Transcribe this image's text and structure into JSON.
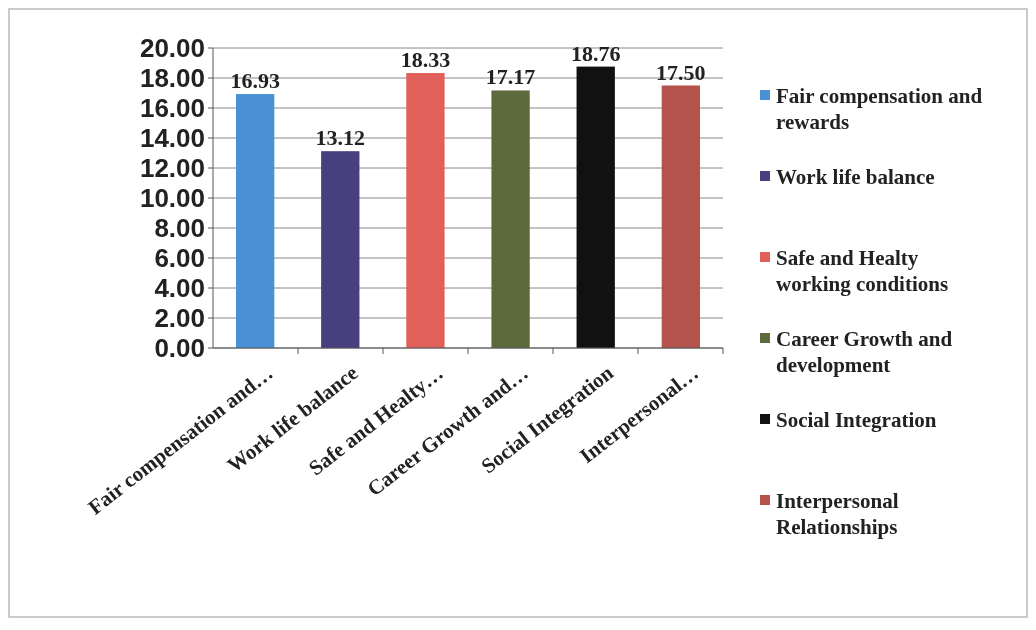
{
  "chart_data": {
    "type": "bar",
    "categories": [
      "Fair compensation and…",
      "Work life balance",
      "Safe and Healty…",
      "Career Growth and…",
      "Social Integration",
      "Interpersonal…"
    ],
    "series": [
      {
        "name": "Fair compensation and rewards",
        "color": "#4a90d4",
        "values": [
          16.93,
          null,
          null,
          null,
          null,
          null
        ],
        "value_labels": [
          "16.93",
          null,
          null,
          null,
          null,
          null
        ]
      },
      {
        "name": "Work life balance",
        "color": "#48407e",
        "values": [
          null,
          13.12,
          null,
          null,
          null,
          null
        ],
        "value_labels": [
          null,
          "13.12",
          null,
          null,
          null,
          null
        ]
      },
      {
        "name": "Safe and Healty working conditions",
        "color": "#e2605a",
        "values": [
          null,
          null,
          18.33,
          null,
          null,
          null
        ],
        "value_labels": [
          null,
          null,
          "18.33",
          null,
          null,
          null
        ]
      },
      {
        "name": "Career Growth and development",
        "color": "#5c6a3c",
        "values": [
          null,
          null,
          null,
          17.17,
          null,
          null
        ],
        "value_labels": [
          null,
          null,
          null,
          "17.17",
          null,
          null
        ]
      },
      {
        "name": "Social Integration",
        "color": "#111111",
        "values": [
          null,
          null,
          null,
          null,
          18.76,
          null
        ],
        "value_labels": [
          null,
          null,
          null,
          null,
          "18.76",
          null
        ]
      },
      {
        "name": "Interpersonal Relationships",
        "color": "#b4524c",
        "values": [
          null,
          null,
          null,
          null,
          null,
          17.5
        ],
        "value_labels": [
          null,
          null,
          null,
          null,
          null,
          "17.50"
        ]
      }
    ],
    "ylim": [
      0,
      20
    ],
    "yticks": [
      {
        "value": 0,
        "label": "0.00"
      },
      {
        "value": 2,
        "label": "2.00"
      },
      {
        "value": 4,
        "label": "4.00"
      },
      {
        "value": 6,
        "label": "6.00"
      },
      {
        "value": 8,
        "label": "8.00"
      },
      {
        "value": 10,
        "label": "10.00"
      },
      {
        "value": 12,
        "label": "12.00"
      },
      {
        "value": 14,
        "label": "14.00"
      },
      {
        "value": 16,
        "label": "16.00"
      },
      {
        "value": 18,
        "label": "18.00"
      },
      {
        "value": 20,
        "label": "20.00"
      }
    ],
    "grid": "y",
    "legend": "right"
  }
}
